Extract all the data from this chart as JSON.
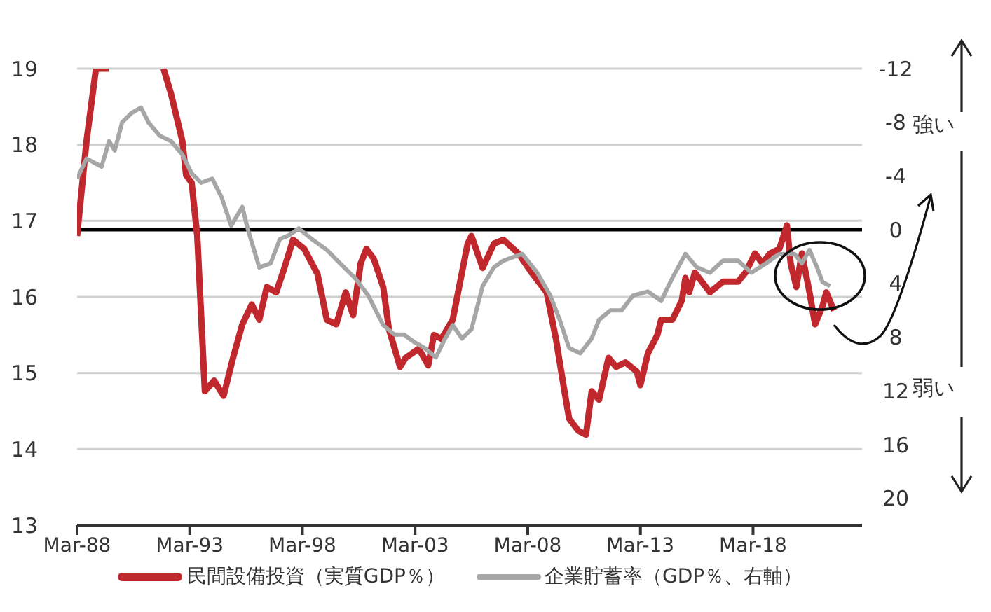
{
  "chart_data": {
    "type": "line",
    "series": [
      {
        "name": "民間設備投資（実質GDP％）",
        "color": "#c0282d",
        "x": [
          "1988-03",
          "1988-08",
          "1989-01",
          "1989-08",
          "1990-06",
          "1992-01",
          "1992-05",
          "1992-11",
          "1993-01",
          "1993-04",
          "1993-07",
          "1993-11",
          "1994-04",
          "1994-09",
          "1995-02",
          "1995-07",
          "1995-12",
          "1996-04",
          "1996-08",
          "1997-01",
          "1997-05",
          "1997-10",
          "1998-04",
          "1998-11",
          "1999-04",
          "1999-09",
          "2000-02",
          "2000-06",
          "2000-10",
          "2001-01",
          "2001-05",
          "2001-10",
          "2002-01",
          "2002-07",
          "2002-10",
          "2003-05",
          "2003-10",
          "2004-01",
          "2004-05",
          "2004-11",
          "2005-07",
          "2005-09",
          "2006-03",
          "2006-09",
          "2007-02",
          "2007-10",
          "2008-05",
          "2009-01",
          "2009-06",
          "2009-10",
          "2010-01",
          "2010-06",
          "2010-10",
          "2011-01",
          "2011-05",
          "2011-10",
          "2012-02",
          "2012-07",
          "2013-01",
          "2013-03",
          "2013-07",
          "2013-12",
          "2014-02",
          "2014-08",
          "2015-01",
          "2015-03",
          "2015-05",
          "2015-08",
          "2016-04",
          "2016-11",
          "2017-07",
          "2017-11",
          "2018-04",
          "2018-08",
          "2018-12",
          "2019-05",
          "2019-09",
          "2019-11",
          "2020-02",
          "2020-05",
          "2020-09",
          "2020-12",
          "2021-04",
          "2021-06",
          "2021-10"
        ],
        "values": [
          16.8,
          18.05,
          19,
          19,
          null,
          19,
          18.67,
          18.05,
          17.6,
          17.5,
          16.8,
          14.76,
          14.9,
          14.7,
          15.2,
          15.64,
          15.9,
          15.7,
          16.13,
          16.06,
          16.35,
          16.75,
          16.63,
          16.3,
          15.7,
          15.64,
          16.06,
          15.76,
          16.44,
          16.63,
          16.5,
          16.13,
          15.58,
          15.08,
          15.2,
          15.32,
          15.1,
          15.5,
          15.45,
          15.7,
          16.7,
          16.8,
          16.38,
          16.7,
          16.75,
          16.57,
          16.32,
          16.06,
          15.45,
          14.84,
          14.4,
          14.24,
          14.19,
          14.76,
          14.65,
          15.2,
          15.08,
          15.14,
          15.02,
          14.84,
          15.26,
          15.5,
          15.7,
          15.7,
          15.95,
          16.25,
          16.06,
          16.32,
          16.06,
          16.2,
          16.2,
          16.32,
          16.57,
          16.44,
          16.57,
          16.63,
          16.94,
          16.44,
          16.13,
          16.57,
          16.06,
          15.64,
          15.88,
          16.06,
          15.82
        ]
      },
      {
        "name": "企業貯蓄率（GDP％、右軸）",
        "color": "#a6a6a6",
        "axis": "y2",
        "x": [
          "1988-03",
          "1988-08",
          "1989-04",
          "1989-08",
          "1989-11",
          "1990-03",
          "1990-08",
          "1991-01",
          "1991-05",
          "1991-11",
          "1992-05",
          "1992-11",
          "1993-04",
          "1993-09",
          "1994-03",
          "1994-08",
          "1995-01",
          "1995-07",
          "1995-10",
          "1996-04",
          "1996-10",
          "1997-03",
          "1997-08",
          "1998-01",
          "1998-08",
          "1999-04",
          "1999-11",
          "2000-07",
          "2001-02",
          "2001-10",
          "2002-04",
          "2002-09",
          "2003-03",
          "2003-08",
          "2004-02",
          "2004-07",
          "2004-11",
          "2005-04",
          "2005-09",
          "2006-03",
          "2006-09",
          "2007-02",
          "2007-12",
          "2008-08",
          "2009-03",
          "2009-08",
          "2010-01",
          "2010-07",
          "2011-01",
          "2011-05",
          "2011-11",
          "2012-05",
          "2012-11",
          "2013-07",
          "2014-02",
          "2014-08",
          "2015-03",
          "2015-09",
          "2016-04",
          "2016-11",
          "2017-07",
          "2018-02",
          "2018-10",
          "2019-05",
          "2020-01",
          "2020-05",
          "2020-09",
          "2021-01",
          "2021-04",
          "2021-08"
        ],
        "values": [
          -3.8,
          -5.3,
          -4.7,
          -6.6,
          -5.9,
          -8.0,
          -8.7,
          -9.1,
          -8.0,
          -7.0,
          -6.6,
          -5.6,
          -4.2,
          -3.5,
          -3.8,
          -2.4,
          -0.3,
          -1.7,
          0,
          2.8,
          2.5,
          0.7,
          0.4,
          -0.1,
          0.7,
          1.5,
          2.5,
          3.6,
          4.9,
          7.1,
          7.8,
          7.8,
          8.4,
          8.8,
          9.5,
          8.1,
          7.1,
          8.1,
          7.4,
          4.2,
          2.8,
          2.3,
          1.8,
          3.2,
          4.9,
          6.7,
          8.8,
          9.2,
          8.1,
          6.7,
          6.0,
          6.0,
          4.9,
          4.6,
          5.3,
          3.6,
          1.8,
          2.8,
          3.2,
          2.3,
          2.3,
          3.2,
          2.5,
          1.8,
          1.8,
          2.5,
          1.5,
          2.8,
          3.9,
          4.2
        ]
      }
    ],
    "xlim": [
      "1988-03",
      "2023-01"
    ],
    "xticks": [
      {
        "value": "1988-03",
        "label": "Mar-88"
      },
      {
        "value": "1993-03",
        "label": "Mar-93"
      },
      {
        "value": "1998-03",
        "label": "Mar-98"
      },
      {
        "value": "2003-03",
        "label": "Mar-03"
      },
      {
        "value": "2008-03",
        "label": "Mar-08"
      },
      {
        "value": "2013-03",
        "label": "Mar-13"
      },
      {
        "value": "2018-03",
        "label": "Mar-18"
      }
    ],
    "ylim": [
      13,
      19
    ],
    "yticks": [
      13,
      14,
      15,
      16,
      17,
      18,
      19
    ],
    "y2lim": [
      22,
      -12
    ],
    "y2ticks": [
      -12,
      -8,
      -4,
      0,
      4,
      8,
      12,
      16,
      20
    ],
    "ref_lines": [
      {
        "axis": "y2",
        "value": 0,
        "color": "#000000"
      }
    ],
    "annotations": [
      "強い",
      "弱い"
    ],
    "grid": "y",
    "legend": "bottom",
    "line_style": "solid",
    "marker": "none"
  }
}
